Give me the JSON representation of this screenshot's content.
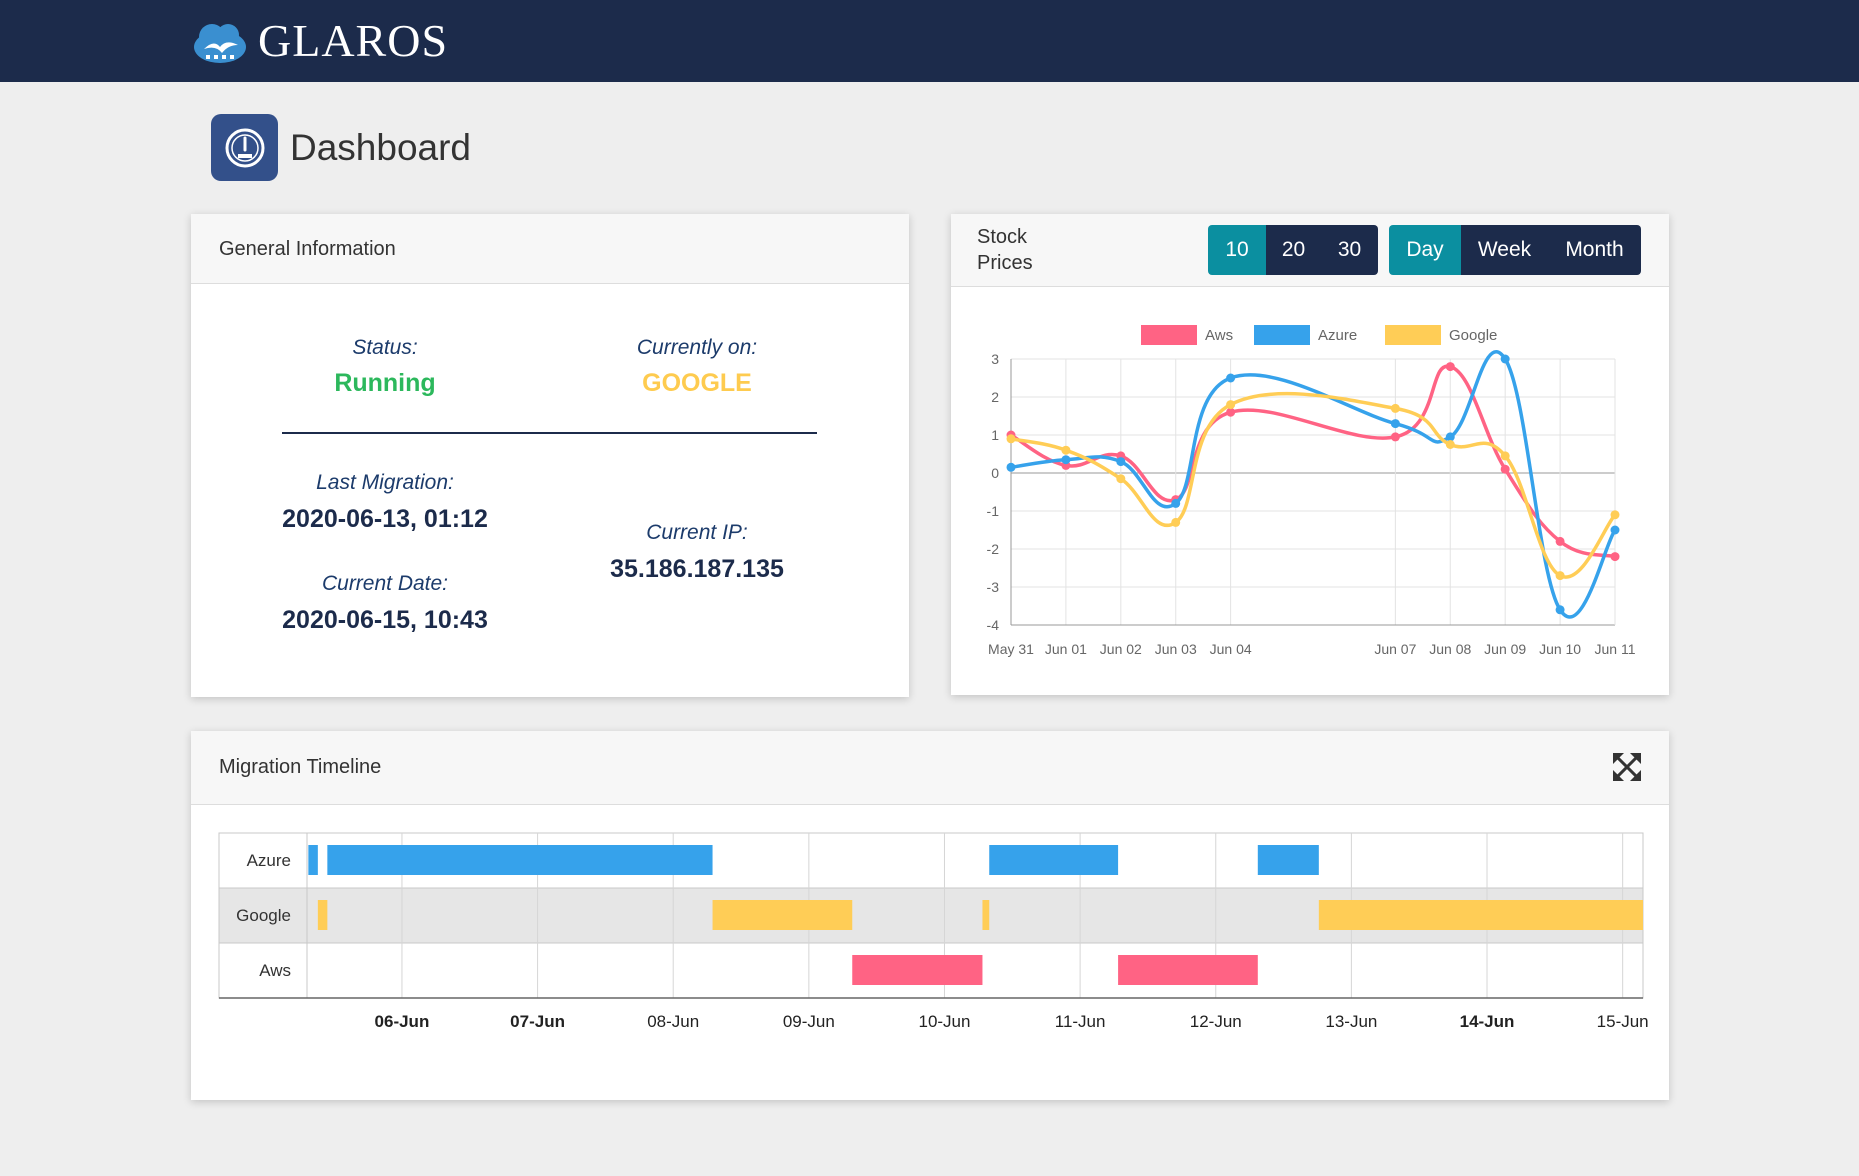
{
  "header": {
    "brand": "GLAROS",
    "logo_icon": "cloud-bird-logo-icon"
  },
  "page": {
    "title": "Dashboard",
    "icon": "dashboard-gauge-icon"
  },
  "general_info": {
    "title": "General Information",
    "status_label": "Status:",
    "status_value": "Running",
    "status_color": "#2cb85c",
    "current_label": "Currently on:",
    "current_value": "GOOGLE",
    "current_color": "#fecb4f",
    "last_migration_label": "Last Migration:",
    "last_migration_value": "2020-06-13, 01:12",
    "current_date_label": "Current Date:",
    "current_date_value": "2020-06-15, 10:43",
    "current_ip_label": "Current IP:",
    "current_ip_value": "35.186.187.135"
  },
  "stock": {
    "title_line1": "Stock",
    "title_line2": "Prices",
    "count_buttons": [
      {
        "label": "10",
        "active": true
      },
      {
        "label": "20",
        "active": false
      },
      {
        "label": "30",
        "active": false
      }
    ],
    "period_buttons": [
      {
        "label": "Day",
        "active": true
      },
      {
        "label": "Week",
        "active": false
      },
      {
        "label": "Month",
        "active": false
      }
    ]
  },
  "timeline": {
    "title": "Migration Timeline",
    "expand_icon": "expand-arrows-icon"
  },
  "chart_data": [
    {
      "type": "line",
      "title": "",
      "x": [
        "May 31",
        "Jun 01",
        "Jun 02",
        "Jun 03",
        "Jun 04",
        "Jun 07",
        "Jun 08",
        "Jun 09",
        "Jun 10",
        "Jun 11"
      ],
      "x_days": [
        0,
        1,
        2,
        3,
        4,
        7,
        8,
        9,
        10,
        11
      ],
      "ylim": [
        -4,
        3
      ],
      "yticks": [
        3,
        2,
        1,
        0,
        -1,
        -2,
        -3,
        -4
      ],
      "grid": true,
      "legend": "top",
      "series": [
        {
          "name": "Aws",
          "color": "#ff6384",
          "values": [
            1.0,
            0.2,
            0.45,
            -0.7,
            1.6,
            0.95,
            2.8,
            0.1,
            -1.8,
            -2.2
          ]
        },
        {
          "name": "Azure",
          "color": "#36a2eb",
          "values": [
            0.15,
            0.35,
            0.3,
            -0.8,
            2.5,
            1.3,
            0.95,
            3.0,
            -3.6,
            -1.5
          ]
        },
        {
          "name": "Google",
          "color": "#ffcd56",
          "values": [
            0.9,
            0.6,
            -0.15,
            -1.3,
            1.8,
            1.7,
            0.75,
            0.45,
            -2.7,
            -1.1
          ]
        }
      ]
    },
    {
      "type": "timeline",
      "rows": [
        "Azure",
        "Google",
        "Aws"
      ],
      "ticks": [
        {
          "label": "06-Jun",
          "bold": true
        },
        {
          "label": "07-Jun",
          "bold": true
        },
        {
          "label": "08-Jun",
          "bold": false
        },
        {
          "label": "09-Jun",
          "bold": false
        },
        {
          "label": "10-Jun",
          "bold": false
        },
        {
          "label": "11-Jun",
          "bold": false
        },
        {
          "label": "12-Jun",
          "bold": false
        },
        {
          "label": "13-Jun",
          "bold": false
        },
        {
          "label": "14-Jun",
          "bold": true
        },
        {
          "label": "15-Jun",
          "bold": false
        }
      ],
      "colors": {
        "Azure": "#36a2eb",
        "Google": "#ffcd56",
        "Aws": "#ff6384"
      },
      "range_days": [
        5.3,
        15.15
      ],
      "bars": [
        {
          "row": "Azure",
          "start": 5.31,
          "end": 5.38
        },
        {
          "row": "Azure",
          "start": 5.45,
          "end": 8.29
        },
        {
          "row": "Azure",
          "start": 10.33,
          "end": 11.28
        },
        {
          "row": "Azure",
          "start": 12.31,
          "end": 12.76
        },
        {
          "row": "Google",
          "start": 5.38,
          "end": 5.45
        },
        {
          "row": "Google",
          "start": 8.29,
          "end": 9.32
        },
        {
          "row": "Google",
          "start": 10.28,
          "end": 10.33
        },
        {
          "row": "Google",
          "start": 12.76,
          "end": 15.15
        },
        {
          "row": "Aws",
          "start": 9.32,
          "end": 10.28
        },
        {
          "row": "Aws",
          "start": 11.28,
          "end": 12.31
        }
      ]
    }
  ]
}
